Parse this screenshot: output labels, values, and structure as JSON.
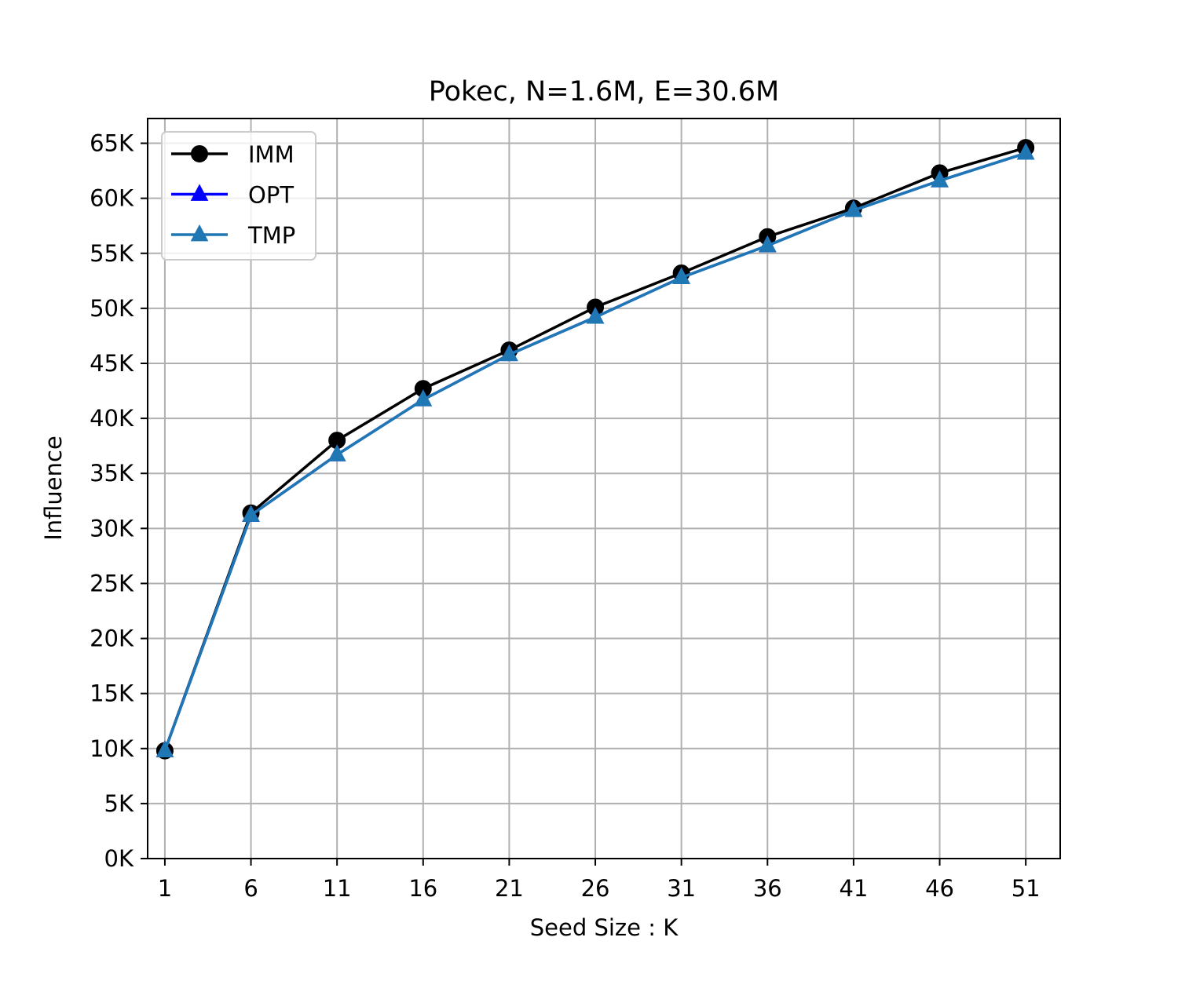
{
  "chart_data": {
    "type": "line",
    "title": "Pokec, N=1.6M, E=30.6M",
    "xlabel": "Seed Size : K",
    "ylabel": "Influence",
    "x": [
      1,
      6,
      11,
      16,
      21,
      26,
      31,
      36,
      41,
      46,
      51
    ],
    "x_tick_labels": [
      "1",
      "6",
      "11",
      "16",
      "21",
      "26",
      "31",
      "36",
      "41",
      "46",
      "51"
    ],
    "y_ticks": [
      0,
      5000,
      10000,
      15000,
      20000,
      25000,
      30000,
      35000,
      40000,
      45000,
      50000,
      55000,
      60000,
      65000
    ],
    "y_tick_labels": [
      "0K",
      "5K",
      "10K",
      "15K",
      "20K",
      "25K",
      "30K",
      "35K",
      "40K",
      "45K",
      "50K",
      "55K",
      "60K",
      "65K"
    ],
    "xlim": [
      0,
      53
    ],
    "ylim": [
      0,
      67250
    ],
    "grid": true,
    "legend_position": "top-left",
    "series": [
      {
        "name": "IMM",
        "color": "#000000",
        "marker": "circle",
        "values": [
          9800,
          31400,
          38000,
          42700,
          46200,
          50100,
          53200,
          56500,
          59100,
          62300,
          64600
        ]
      },
      {
        "name": "OPT",
        "color": "#0000ff",
        "marker": "triangle",
        "values": [
          9800,
          31200,
          36700,
          41700,
          45800,
          49200,
          52800,
          55700,
          58900,
          61600,
          64100
        ]
      },
      {
        "name": "TMP",
        "color": "#1f77b4",
        "marker": "triangle",
        "values": [
          9800,
          31200,
          36700,
          41700,
          45800,
          49200,
          52800,
          55700,
          58900,
          61600,
          64100
        ]
      }
    ]
  }
}
